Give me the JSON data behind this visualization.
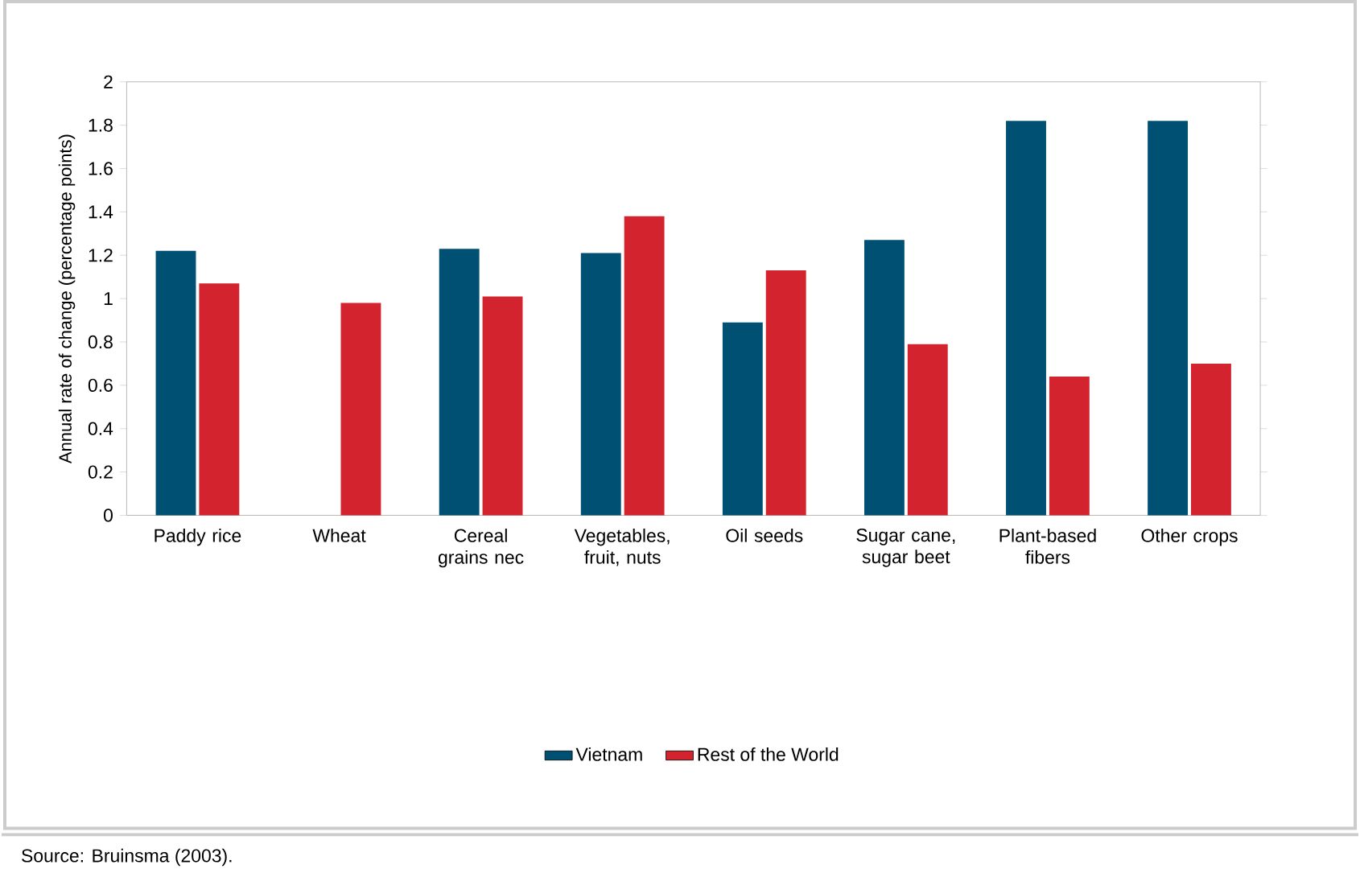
{
  "chart_data": {
    "type": "bar",
    "ylabel": "Annual rate of change (percentage points)",
    "categories": [
      "Paddy rice",
      "Wheat",
      "Cereal grains nec",
      "Vegetables, fruit, nuts",
      "Oil seeds",
      "Sugar cane, sugar beet",
      "Plant-based fibers",
      "Other crops"
    ],
    "series": [
      {
        "name": "Vietnam",
        "color": "#005073",
        "values": [
          1.22,
          null,
          1.23,
          1.21,
          0.89,
          1.27,
          1.82,
          1.82
        ]
      },
      {
        "name": "Rest of the World",
        "color": "#d2232e",
        "values": [
          1.07,
          0.98,
          1.01,
          1.38,
          1.13,
          0.79,
          0.64,
          0.7
        ]
      }
    ],
    "ylim": [
      0,
      2
    ],
    "yticks": [
      0,
      0.2,
      0.4,
      0.6,
      0.8,
      1,
      1.2,
      1.4,
      1.6,
      1.8,
      2
    ],
    "legend": "bottom",
    "grid": false,
    "annotations": [
      "Source: Bruinsma (2003)."
    ]
  }
}
